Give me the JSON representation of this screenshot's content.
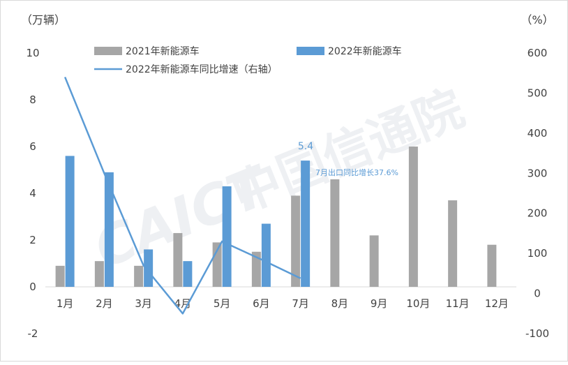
{
  "chart_data": {
    "type": "bar",
    "categories": [
      "1月",
      "2月",
      "3月",
      "4月",
      "5月",
      "6月",
      "7月",
      "8月",
      "9月",
      "10月",
      "11月",
      "12月"
    ],
    "y_left_unit": "（万辆）",
    "y_right_unit": "（%）",
    "y_left_ticks": [
      "10",
      "8",
      "6",
      "4",
      "2",
      "0",
      "-2"
    ],
    "y_right_ticks": [
      "600",
      "500",
      "400",
      "300",
      "200",
      "100",
      "0",
      "-100"
    ],
    "ylim_left": [
      -2,
      10
    ],
    "ylim_right": [
      -100,
      600
    ],
    "legend_position": "top",
    "series": [
      {
        "name": "2021年新能源车",
        "type": "bar",
        "axis": "left",
        "color": "#a6a6a6",
        "values": [
          0.9,
          1.1,
          0.9,
          2.3,
          1.9,
          1.5,
          3.9,
          4.6,
          2.2,
          6.0,
          3.7,
          1.8
        ]
      },
      {
        "name": "2022年新能源车",
        "type": "bar",
        "axis": "left",
        "color": "#5b9bd5",
        "values": [
          5.6,
          4.9,
          1.6,
          1.1,
          4.3,
          2.7,
          5.4,
          null,
          null,
          null,
          null,
          null
        ]
      },
      {
        "name": "2022年新能源车同比增速（右轴）",
        "type": "line",
        "axis": "right",
        "color": "#5b9bd5",
        "values": [
          540,
          300,
          70,
          -50,
          130,
          85,
          38,
          null,
          null,
          null,
          null,
          null
        ]
      }
    ],
    "annotations": [
      {
        "text": "5.4"
      },
      {
        "text": "7月出口同比增长37.6%"
      }
    ],
    "watermark": "CAICT中国信通院",
    "grid": false
  }
}
